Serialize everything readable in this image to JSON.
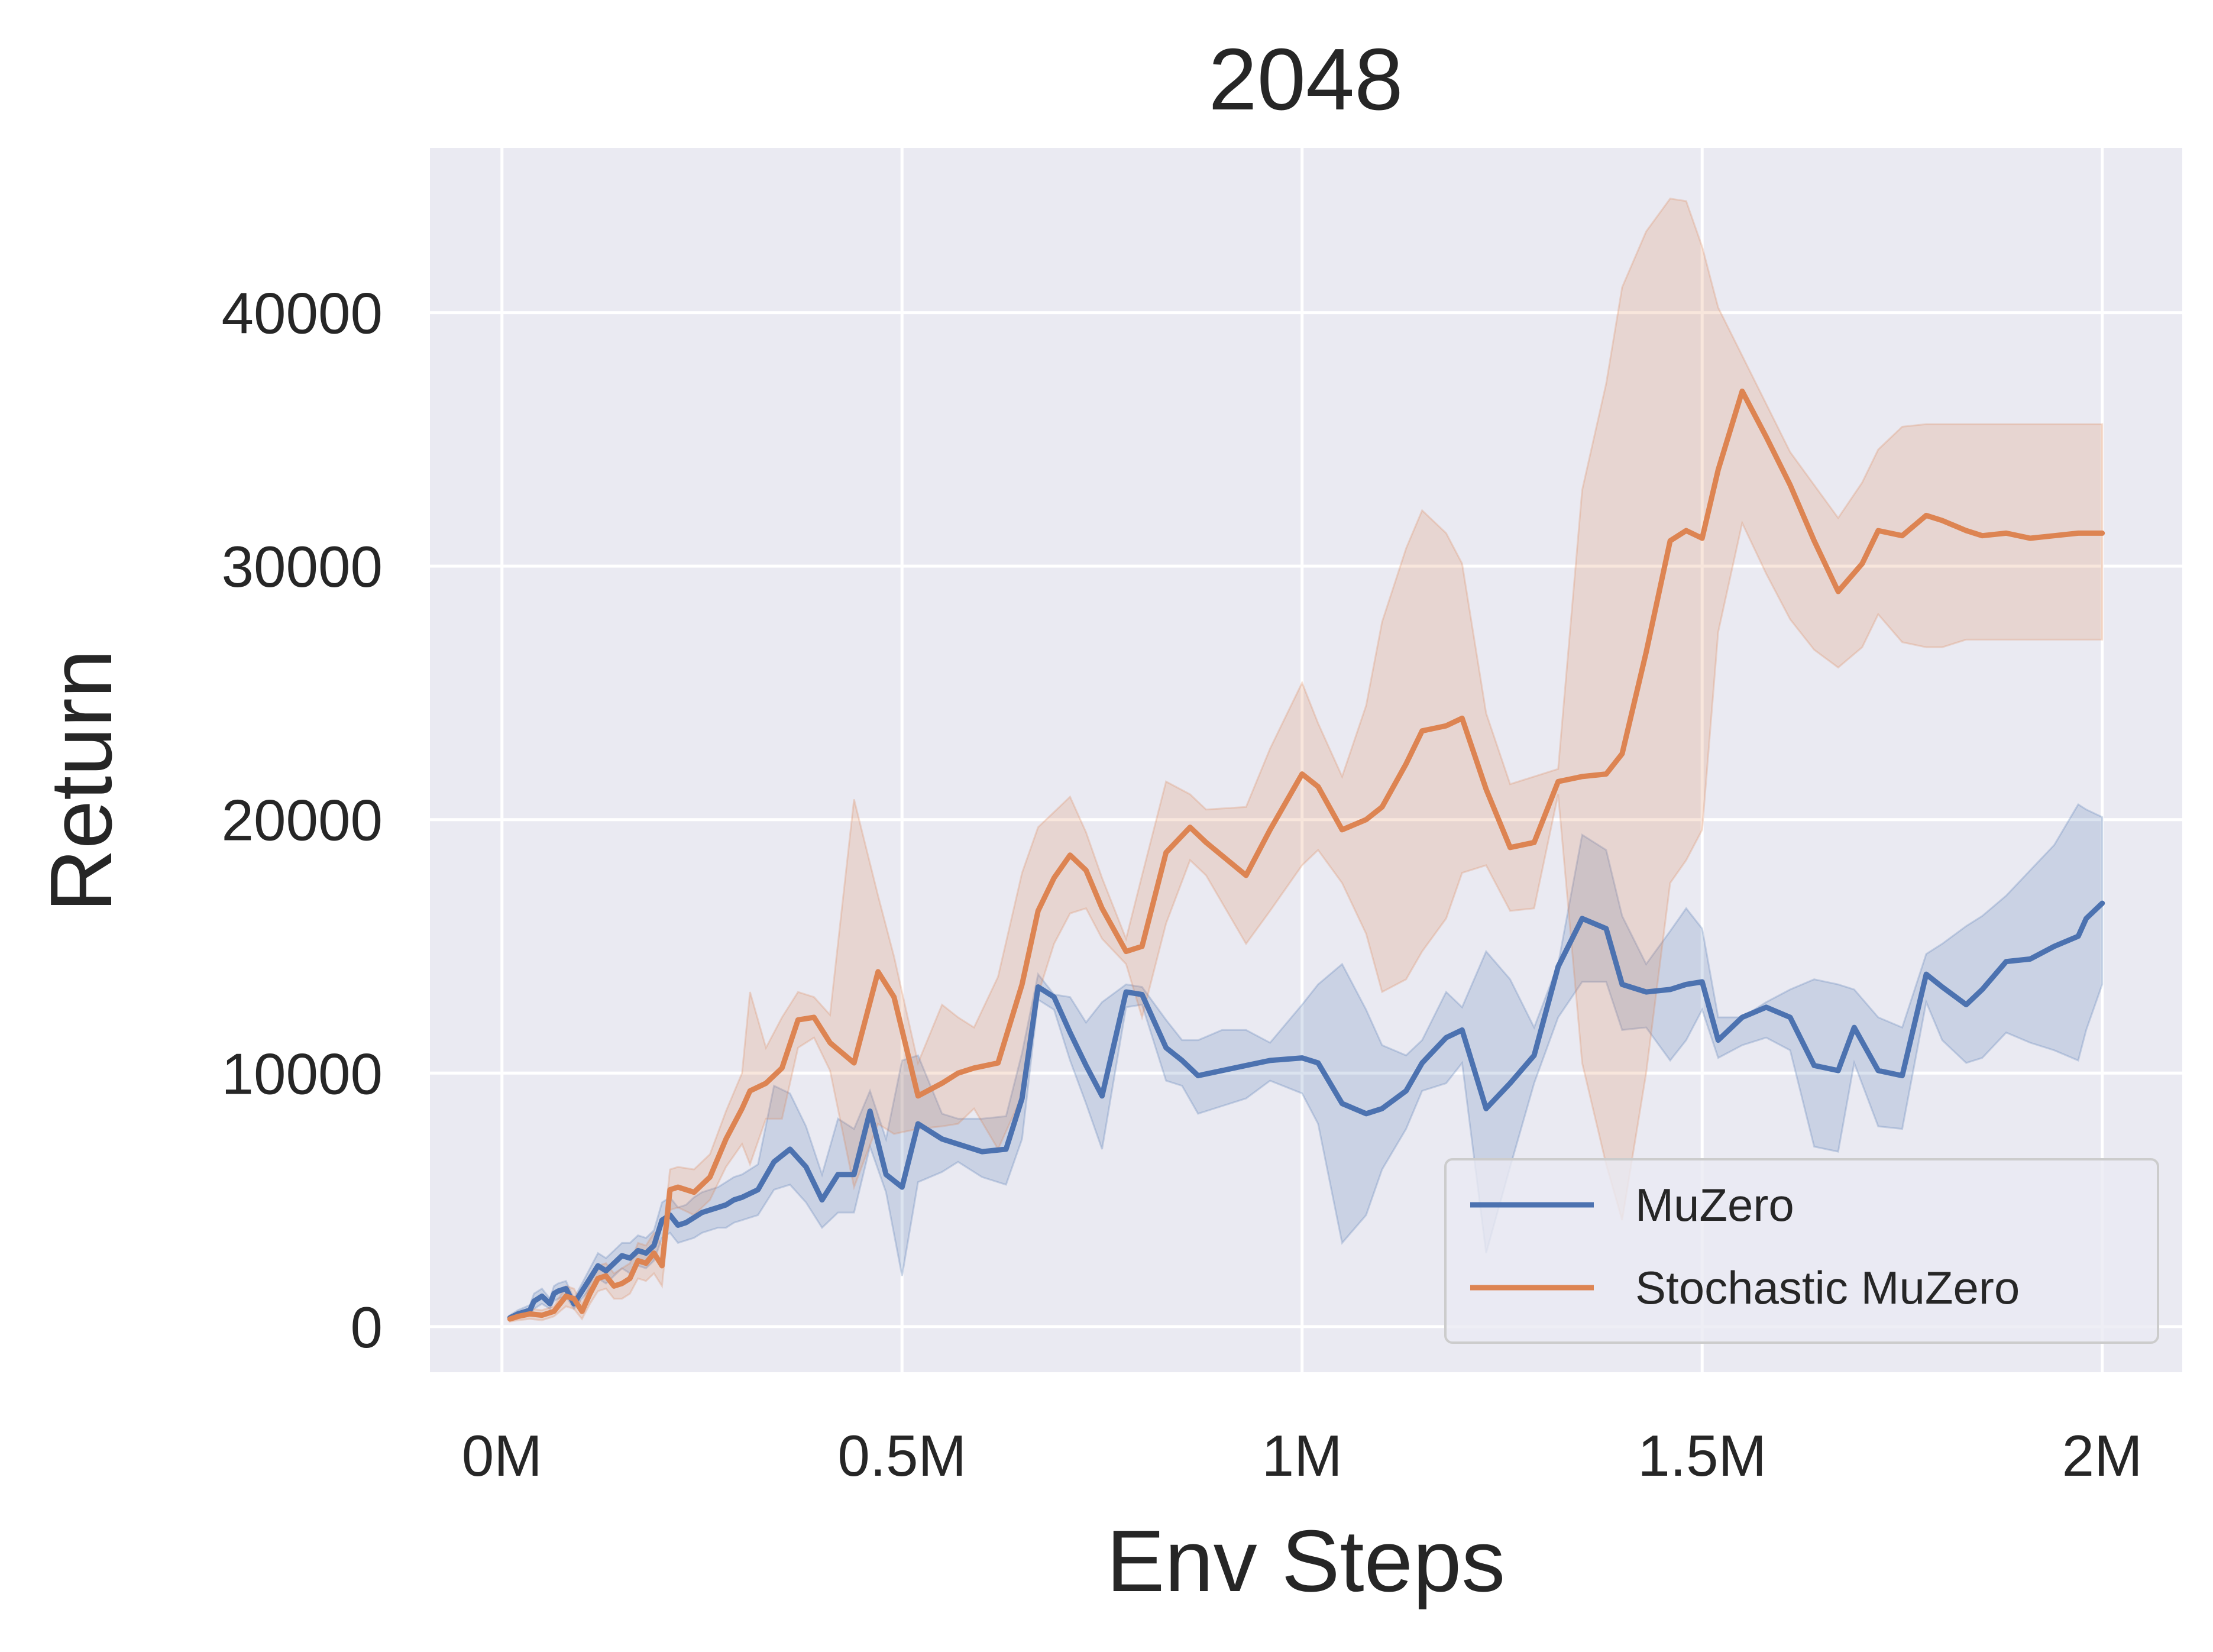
{
  "chart_data": {
    "type": "line",
    "title": "2048",
    "xlabel": "Env Steps",
    "ylabel": "Return",
    "xlim": [
      -0.09,
      2.1
    ],
    "ylim": [
      -1800,
      46500
    ],
    "x_ticks": [
      {
        "value": 0,
        "label": "0M"
      },
      {
        "value": 0.5,
        "label": "0.5M"
      },
      {
        "value": 1,
        "label": "1M"
      },
      {
        "value": 1.5,
        "label": "1.5M"
      },
      {
        "value": 2,
        "label": "2M"
      }
    ],
    "y_ticks": [
      {
        "value": 0,
        "label": "0"
      },
      {
        "value": 10000,
        "label": "10000"
      },
      {
        "value": 20000,
        "label": "20000"
      },
      {
        "value": 30000,
        "label": "30000"
      },
      {
        "value": 40000,
        "label": "40000"
      }
    ],
    "grid": true,
    "background": "#eaeaf2",
    "legend_position": "lower-right",
    "series": [
      {
        "name": "MuZero",
        "color": "#4c72b0",
        "x": [
          0.01,
          0.02,
          0.035,
          0.04,
          0.05,
          0.06,
          0.065,
          0.07,
          0.08,
          0.09,
          0.1,
          0.12,
          0.13,
          0.14,
          0.15,
          0.16,
          0.17,
          0.18,
          0.19,
          0.2,
          0.21,
          0.22,
          0.23,
          0.24,
          0.25,
          0.26,
          0.27,
          0.28,
          0.29,
          0.3,
          0.32,
          0.34,
          0.36,
          0.38,
          0.4,
          0.42,
          0.44,
          0.46,
          0.48,
          0.5,
          0.52,
          0.55,
          0.57,
          0.6,
          0.63,
          0.65,
          0.67,
          0.69,
          0.71,
          0.73,
          0.75,
          0.78,
          0.8,
          0.83,
          0.85,
          0.87,
          0.9,
          0.93,
          0.96,
          1.0,
          1.02,
          1.05,
          1.08,
          1.1,
          1.13,
          1.15,
          1.18,
          1.2,
          1.23,
          1.26,
          1.29,
          1.32,
          1.35,
          1.38,
          1.4,
          1.43,
          1.46,
          1.48,
          1.5,
          1.52,
          1.55,
          1.58,
          1.61,
          1.64,
          1.67,
          1.69,
          1.72,
          1.75,
          1.78,
          1.8,
          1.83,
          1.85,
          1.88,
          1.91,
          1.94,
          1.97,
          1.98,
          2.0
        ],
        "y": [
          350,
          500,
          650,
          1000,
          1200,
          900,
          1300,
          1400,
          1500,
          900,
          1400,
          2400,
          2200,
          2500,
          2800,
          2700,
          3000,
          2900,
          3200,
          4200,
          4400,
          4000,
          4100,
          4300,
          4500,
          4600,
          4700,
          4800,
          5000,
          5100,
          5400,
          6500,
          7000,
          6300,
          5000,
          6000,
          6000,
          8500,
          6000,
          5500,
          8000,
          7400,
          7200,
          6900,
          7000,
          9000,
          13400,
          13000,
          11600,
          10300,
          9100,
          13200,
          13100,
          11000,
          10500,
          9900,
          10100,
          10300,
          10500,
          10600,
          10400,
          8800,
          8400,
          8600,
          9300,
          10400,
          11400,
          11700,
          8600,
          9600,
          10700,
          14200,
          16100,
          15700,
          13500,
          13200,
          13300,
          13500,
          13600,
          11300,
          12200,
          12600,
          12200,
          10300,
          10100,
          11800,
          10100,
          9900,
          13900,
          13400,
          12700,
          13300,
          14400,
          14500,
          15000,
          15400,
          16100,
          16700
        ],
        "upper": [
          450,
          650,
          850,
          1300,
          1500,
          1100,
          1600,
          1700,
          1800,
          1100,
          1700,
          2900,
          2700,
          3000,
          3300,
          3300,
          3600,
          3500,
          3800,
          4900,
          5100,
          4700,
          4800,
          5100,
          5300,
          5400,
          5500,
          5700,
          5900,
          6000,
          6400,
          9500,
          9200,
          7900,
          6000,
          8200,
          7800,
          9300,
          7400,
          10500,
          10700,
          8400,
          8200,
          8200,
          8300,
          10800,
          13900,
          13100,
          13000,
          12000,
          12800,
          13500,
          13400,
          12100,
          11300,
          11300,
          11700,
          11700,
          11200,
          12700,
          13500,
          14300,
          12500,
          11100,
          10700,
          11300,
          13200,
          12600,
          14800,
          13700,
          11800,
          14300,
          19400,
          18800,
          16200,
          14300,
          15600,
          16500,
          15700,
          12200,
          12200,
          12800,
          13300,
          13700,
          13500,
          13300,
          12200,
          11800,
          14700,
          15100,
          15800,
          16200,
          17000,
          18000,
          19000,
          20600,
          20400,
          20100
        ],
        "lower": [
          250,
          350,
          450,
          700,
          900,
          700,
          1000,
          1100,
          1200,
          700,
          1100,
          1900,
          1700,
          2000,
          2300,
          2100,
          2400,
          2300,
          2600,
          3500,
          3700,
          3300,
          3400,
          3500,
          3700,
          3800,
          3900,
          3900,
          4100,
          4200,
          4400,
          5400,
          5600,
          4900,
          3900,
          4500,
          4500,
          7100,
          5300,
          2000,
          5700,
          6100,
          6500,
          5900,
          5600,
          7400,
          12900,
          12500,
          10500,
          8800,
          7000,
          12600,
          12700,
          9700,
          9500,
          8400,
          8700,
          9000,
          9700,
          9200,
          8000,
          3300,
          4400,
          6200,
          7800,
          9300,
          9600,
          10400,
          2900,
          6300,
          9600,
          12200,
          13600,
          13600,
          11700,
          11800,
          10500,
          11300,
          12500,
          10600,
          11100,
          11400,
          10900,
          7100,
          6900,
          10400,
          7900,
          7800,
          12800,
          11300,
          10400,
          10600,
          11600,
          11200,
          10900,
          10500,
          11700,
          13500
        ]
      },
      {
        "name": "Stochastic MuZero",
        "color": "#dd8452",
        "x": [
          0.01,
          0.02,
          0.035,
          0.05,
          0.065,
          0.08,
          0.09,
          0.1,
          0.11,
          0.12,
          0.13,
          0.14,
          0.15,
          0.16,
          0.17,
          0.18,
          0.19,
          0.2,
          0.21,
          0.22,
          0.24,
          0.26,
          0.28,
          0.3,
          0.31,
          0.33,
          0.35,
          0.37,
          0.39,
          0.41,
          0.44,
          0.47,
          0.49,
          0.52,
          0.55,
          0.57,
          0.59,
          0.62,
          0.65,
          0.67,
          0.69,
          0.71,
          0.73,
          0.75,
          0.78,
          0.8,
          0.83,
          0.86,
          0.88,
          0.93,
          0.96,
          1.0,
          1.02,
          1.05,
          1.08,
          1.1,
          1.13,
          1.15,
          1.18,
          1.2,
          1.23,
          1.26,
          1.29,
          1.32,
          1.35,
          1.38,
          1.4,
          1.43,
          1.46,
          1.48,
          1.5,
          1.52,
          1.55,
          1.58,
          1.61,
          1.64,
          1.67,
          1.7,
          1.72,
          1.75,
          1.78,
          1.8,
          1.83,
          1.85,
          1.88,
          1.91,
          1.94,
          1.97,
          2.0
        ],
        "y": [
          300,
          400,
          500,
          450,
          600,
          1200,
          1100,
          600,
          1300,
          1900,
          2000,
          1600,
          1700,
          1900,
          2600,
          2500,
          2900,
          2400,
          5400,
          5500,
          5300,
          5900,
          7400,
          8600,
          9300,
          9600,
          10200,
          12100,
          12200,
          11200,
          10400,
          14000,
          13000,
          9100,
          9600,
          10000,
          10200,
          10400,
          13500,
          16400,
          17700,
          18600,
          18000,
          16500,
          14800,
          15000,
          18700,
          19700,
          19100,
          17800,
          19600,
          21800,
          21300,
          19600,
          20000,
          20500,
          22200,
          23500,
          23700,
          24000,
          21200,
          18900,
          19100,
          21500,
          21700,
          21800,
          22600,
          26600,
          31000,
          31400,
          31100,
          33800,
          36900,
          35100,
          33200,
          31000,
          29000,
          30100,
          31400,
          31200,
          32000,
          31800,
          31400,
          31200,
          31300,
          31100,
          31200,
          31300,
          31300
        ],
        "upper": [
          400,
          550,
          700,
          650,
          800,
          1600,
          1500,
          900,
          1700,
          2400,
          2500,
          2100,
          2300,
          2500,
          3300,
          3200,
          3700,
          3200,
          6200,
          6300,
          6200,
          6800,
          8500,
          10000,
          13200,
          11000,
          12200,
          13200,
          13000,
          12300,
          20800,
          17000,
          14600,
          10400,
          12700,
          12200,
          11800,
          13800,
          17900,
          19700,
          20300,
          20900,
          19500,
          17700,
          15300,
          17800,
          21500,
          21000,
          20400,
          20500,
          22800,
          25400,
          23800,
          21700,
          24500,
          27800,
          30700,
          32200,
          31300,
          30100,
          24200,
          21400,
          21700,
          22000,
          33000,
          37200,
          41000,
          43200,
          44500,
          44400,
          42600,
          40200,
          38300,
          36400,
          34500,
          33200,
          31900,
          33300,
          34600,
          35500,
          35600,
          35600,
          35600,
          35600,
          35600,
          35600,
          35600,
          35600,
          35600
        ],
        "lower": [
          200,
          250,
          300,
          250,
          400,
          800,
          700,
          300,
          900,
          1400,
          1500,
          1100,
          1100,
          1300,
          1900,
          1800,
          2100,
          1600,
          4600,
          4700,
          4400,
          5000,
          6300,
          7200,
          6400,
          8200,
          8200,
          11000,
          11400,
          10100,
          5500,
          8000,
          7600,
          7800,
          7900,
          8000,
          8600,
          7000,
          9100,
          13100,
          15100,
          16300,
          16500,
          15300,
          14300,
          12200,
          15900,
          18400,
          17800,
          15100,
          16400,
          18200,
          18800,
          17500,
          15500,
          13200,
          13700,
          14800,
          16100,
          17900,
          18200,
          16400,
          16500,
          21000,
          10400,
          6400,
          4200,
          10000,
          17500,
          18400,
          19600,
          27400,
          31700,
          29700,
          27900,
          26700,
          26000,
          26800,
          28100,
          27000,
          26800,
          26800,
          27100,
          27100,
          27100,
          27100,
          27100,
          27100,
          27100
        ]
      }
    ]
  }
}
